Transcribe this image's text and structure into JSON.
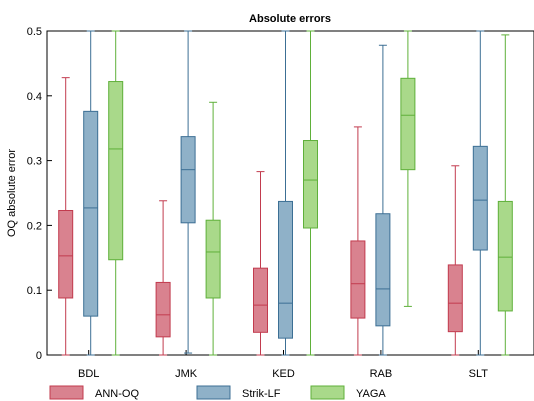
{
  "chart_data": {
    "type": "box",
    "title": "Absolute errors",
    "xlabel": "",
    "ylabel": "OQ absolute error",
    "ylim": [
      0,
      0.5
    ],
    "yticks": [
      "0",
      "0.1",
      "0.2",
      "0.3",
      "0.4",
      "0.5"
    ],
    "categories": [
      "BDL",
      "JMK",
      "KED",
      "RAB",
      "SLT"
    ],
    "legend_position": "bottom",
    "grid": false,
    "series": [
      {
        "name": "ANN-OQ",
        "color": "#d9828f",
        "edge": "#c23b4e",
        "boxes": [
          {
            "min": 0.0,
            "q1": 0.088,
            "median": 0.153,
            "q3": 0.223,
            "max": 0.428
          },
          {
            "min": 0.0,
            "q1": 0.028,
            "median": 0.062,
            "q3": 0.112,
            "max": 0.238
          },
          {
            "min": 0.0,
            "q1": 0.035,
            "median": 0.077,
            "q3": 0.134,
            "max": 0.283
          },
          {
            "min": 0.0,
            "q1": 0.057,
            "median": 0.11,
            "q3": 0.176,
            "max": 0.352
          },
          {
            "min": 0.0,
            "q1": 0.036,
            "median": 0.08,
            "q3": 0.139,
            "max": 0.292
          }
        ]
      },
      {
        "name": "Strik-LF",
        "color": "#8fb1c8",
        "edge": "#3c6f94",
        "boxes": [
          {
            "min": 0.0,
            "q1": 0.06,
            "median": 0.227,
            "q3": 0.376,
            "max": 0.5
          },
          {
            "min": 0.003,
            "q1": 0.204,
            "median": 0.286,
            "q3": 0.337,
            "max": 0.5
          },
          {
            "min": 0.0,
            "q1": 0.026,
            "median": 0.08,
            "q3": 0.237,
            "max": 0.5
          },
          {
            "min": 0.0,
            "q1": 0.045,
            "median": 0.102,
            "q3": 0.218,
            "max": 0.478
          },
          {
            "min": 0.0,
            "q1": 0.162,
            "median": 0.239,
            "q3": 0.322,
            "max": 0.5
          }
        ]
      },
      {
        "name": "YAGA",
        "color": "#a9d98a",
        "edge": "#5fb03a",
        "boxes": [
          {
            "min": 0.0,
            "q1": 0.147,
            "median": 0.318,
            "q3": 0.422,
            "max": 0.5
          },
          {
            "min": 0.0,
            "q1": 0.088,
            "median": 0.159,
            "q3": 0.208,
            "max": 0.39
          },
          {
            "min": 0.0,
            "q1": 0.196,
            "median": 0.27,
            "q3": 0.331,
            "max": 0.5
          },
          {
            "min": 0.075,
            "q1": 0.286,
            "median": 0.37,
            "q3": 0.427,
            "max": 0.5
          },
          {
            "min": 0.0,
            "q1": 0.068,
            "median": 0.151,
            "q3": 0.237,
            "max": 0.494
          }
        ]
      }
    ]
  }
}
